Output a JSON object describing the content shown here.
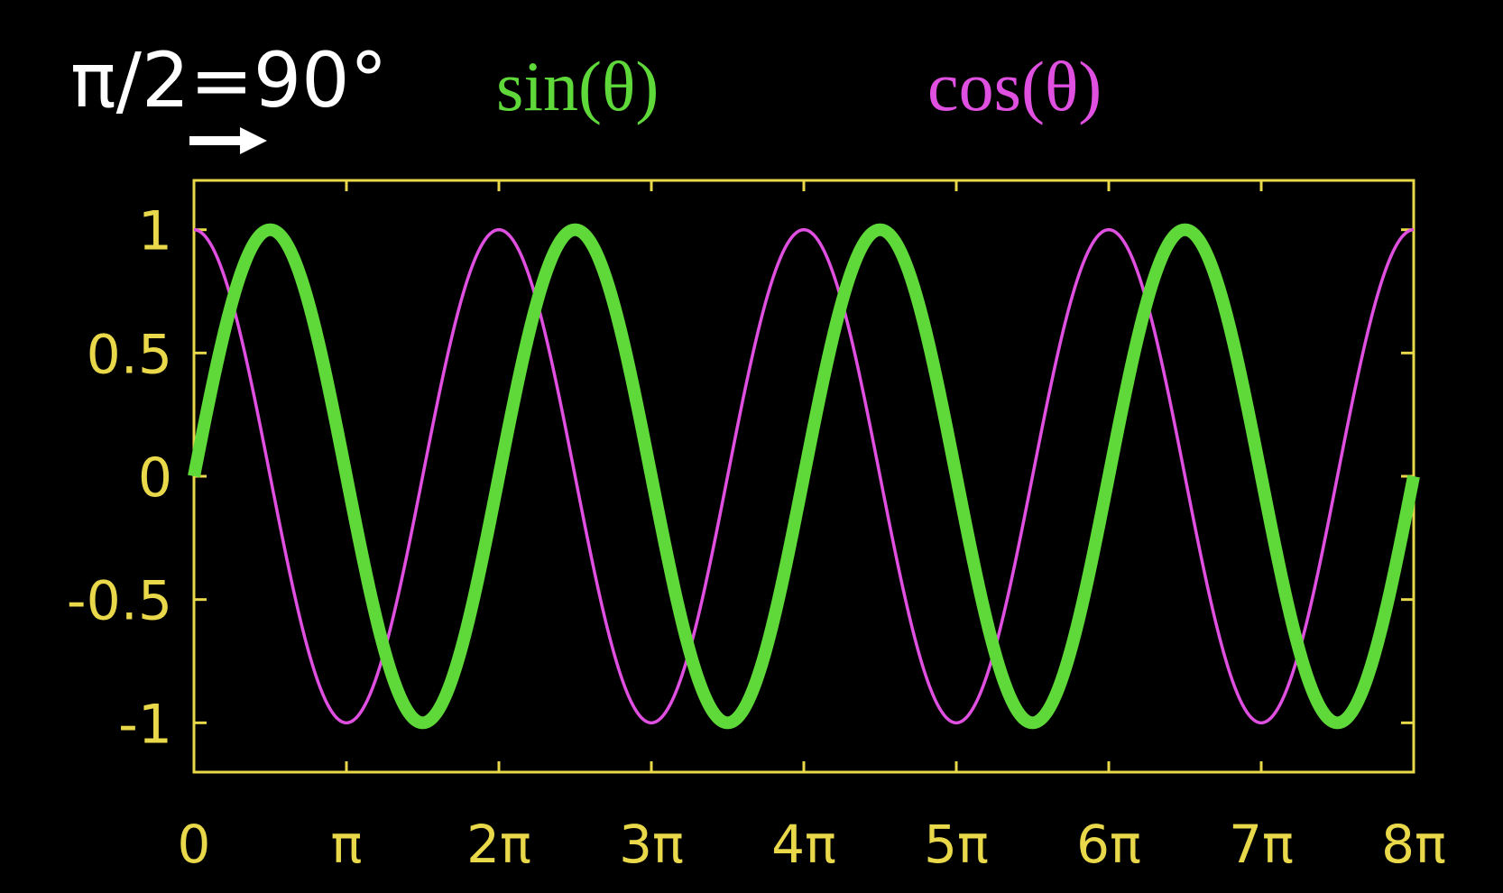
{
  "phase_label": "π/2=90°",
  "phase_arrow": "right-arrow-icon",
  "colors": {
    "background": "#000000",
    "axes": "#e8d84a",
    "sin": "#5fd83a",
    "cos": "#e050e0",
    "phase_label": "#ffffff"
  },
  "chart_data": {
    "type": "line",
    "title": "",
    "xlabel": "",
    "ylabel": "",
    "xlim_multiples_of_pi": [
      0,
      8
    ],
    "ylim": [
      -1.2,
      1.2
    ],
    "grid": false,
    "legend_placement": "top",
    "x_tick_labels": [
      "0",
      "π",
      "2π",
      "3π",
      "4π",
      "5π",
      "6π",
      "7π",
      "8π"
    ],
    "y_tick_labels": [
      "1",
      "0.5",
      "0",
      "-0.5",
      "-1"
    ],
    "y_tick_values": [
      1,
      0.5,
      0,
      -0.5,
      -1
    ],
    "series": [
      {
        "name": "sin(θ)",
        "function": "sin(θ)",
        "x_pi": [
          0,
          0.5,
          1,
          1.5,
          2,
          2.5,
          3,
          3.5,
          4,
          4.5,
          5,
          5.5,
          6,
          6.5,
          7,
          7.5,
          8
        ],
        "y": [
          0,
          1,
          0,
          -1,
          0,
          1,
          0,
          -1,
          0,
          1,
          0,
          -1,
          0,
          1,
          0,
          -1,
          0
        ]
      },
      {
        "name": "cos(θ)",
        "function": "cos(θ)",
        "x_pi": [
          0,
          0.5,
          1,
          1.5,
          2,
          2.5,
          3,
          3.5,
          4,
          4.5,
          5,
          5.5,
          6,
          6.5,
          7,
          7.5,
          8
        ],
        "y": [
          1,
          0,
          -1,
          0,
          1,
          0,
          -1,
          0,
          1,
          0,
          -1,
          0,
          1,
          0,
          -1,
          0,
          1
        ]
      }
    ]
  }
}
